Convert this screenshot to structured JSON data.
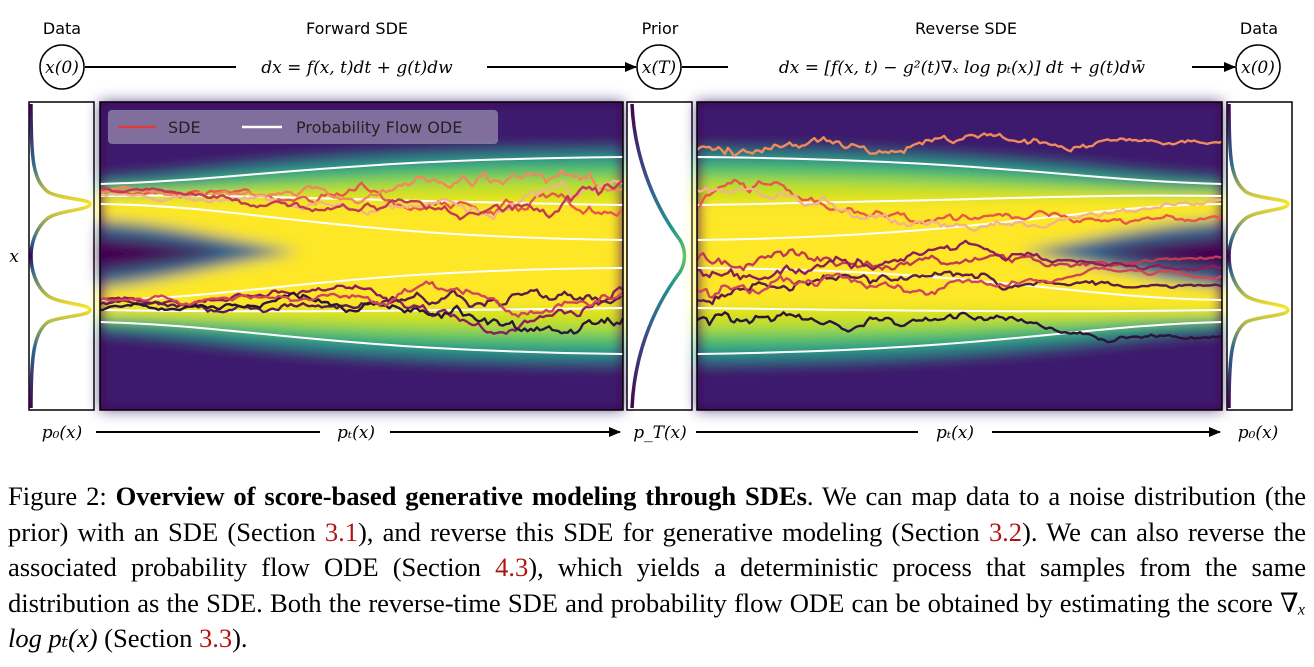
{
  "figure": {
    "data_label": "Data",
    "forward_label": "Forward SDE",
    "prior_label": "Prior",
    "reverse_label": "Reverse SDE",
    "node_x0": "x(0)",
    "node_xT": "x(T)",
    "forward_eq": "dx = f(x, t)dt + g(t)dw",
    "reverse_eq": "dx = [f(x, t) − g²(t)∇ₓ log pₜ(x)] dt + g(t)dw̄",
    "axis_x_label": "x",
    "p0": "p₀(x)",
    "pt": "pₜ(x)",
    "pT": "p_T(x)",
    "legend": {
      "sde": "SDE",
      "ode": "Probability Flow ODE"
    },
    "colors": {
      "sde_legend": "#e03c3c",
      "ode": "#ffffff",
      "density_high": "#fde725",
      "density_low": "#440154"
    }
  },
  "caption": {
    "lead": "Figure 2: ",
    "bold": "Overview of score-based generative modeling through SDEs",
    "t1": ". We can map data to a noise distribution (the prior) with an SDE (Section ",
    "r1": "3.1",
    "t2": "), and reverse this SDE for generative modeling (Section ",
    "r2": "3.2",
    "t3": "). We can also reverse the associated probability flow ODE (Section ",
    "r3": "4.3",
    "t4": "), which yields a deterministic process that samples from the same distribution as the SDE. Both the reverse-time SDE and probability flow ODE can be obtained by estimating the score ",
    "score": "∇ₓ log pₜ(x)",
    "t5": " (Section ",
    "r4": "3.3",
    "t6": ")."
  }
}
